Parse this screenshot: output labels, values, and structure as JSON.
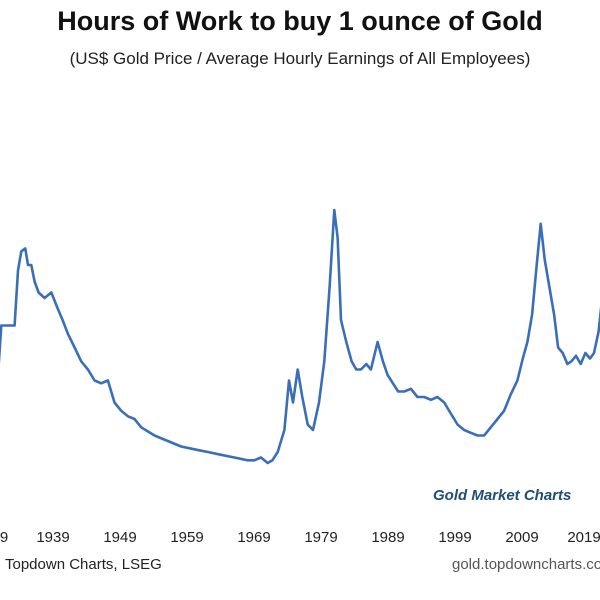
{
  "chart_data": {
    "type": "line",
    "title": "Hours of Work to buy 1 ounce of Gold",
    "subtitle": "(US$ Gold Price / Average Hourly Earnings of All Employees)",
    "xlabel": "",
    "ylabel": "",
    "x_ticks": [
      "9",
      "1939",
      "1949",
      "1959",
      "1969",
      "1979",
      "1989",
      "1999",
      "2009",
      "2019"
    ],
    "xlim": [
      1928,
      2022
    ],
    "ylim": [
      0,
      100
    ],
    "grid": false,
    "legend": "none",
    "line_color": "#3a6fb8",
    "series": [
      {
        "x": [
          1928,
          1929.5,
          1930,
          1932,
          1932.5,
          1933,
          1933.6,
          1934,
          1934.5,
          1935,
          1935.6,
          1936.5,
          1937.5,
          1938.5,
          1939.2,
          1940,
          1941,
          1942,
          1943,
          1944,
          1945,
          1946,
          1947,
          1948,
          1949,
          1950,
          1951,
          1953,
          1955,
          1957,
          1959,
          1961,
          1963,
          1965,
          1967,
          1968,
          1969,
          1970,
          1970.7,
          1971.5,
          1972.5,
          1973.2,
          1973.8,
          1974.5,
          1975.2,
          1976,
          1976.8,
          1977.7,
          1978.5,
          1979.3,
          1980,
          1980.5,
          1981,
          1981.8,
          1982.6,
          1983.3,
          1984,
          1984.8,
          1985.5,
          1986.5,
          1987.3,
          1988,
          1988.8,
          1989.6,
          1990.5,
          1991.5,
          1992.5,
          1993.5,
          1994.5,
          1995.5,
          1996.5,
          1997.5,
          1998.5,
          1999.5,
          2000.5,
          2001.5,
          2002.5,
          2003.5,
          2004.5,
          2005.5,
          2006.5,
          2007.5,
          2008.3,
          2009,
          2009.7,
          2010.4,
          2011,
          2011.6,
          2012.3,
          2013,
          2013.6,
          2014.3,
          2015,
          2015.6,
          2016.3,
          2017,
          2017.7,
          2018.4,
          2019,
          2019.7,
          2020.3,
          2021,
          2022
        ],
        "y": [
          40,
          40,
          58,
          58,
          78,
          85,
          86,
          80,
          80,
          74,
          70,
          68,
          70,
          64,
          60,
          55,
          50,
          45,
          42,
          38,
          37,
          38,
          30,
          27,
          25,
          24,
          21,
          18,
          16,
          14,
          13,
          12,
          11,
          10,
          9,
          9,
          10,
          8,
          9,
          12,
          20,
          38,
          30,
          42,
          32,
          22,
          20,
          30,
          45,
          72,
          100,
          90,
          60,
          52,
          45,
          42,
          42,
          44,
          42,
          52,
          45,
          40,
          37,
          34,
          34,
          35,
          32,
          32,
          31,
          32,
          30,
          26,
          22,
          20,
          19,
          18,
          18,
          21,
          24,
          27,
          33,
          38,
          46,
          52,
          62,
          80,
          95,
          82,
          72,
          62,
          50,
          48,
          44,
          45,
          47,
          44,
          48,
          46,
          48,
          56,
          70,
          64,
          60
        ]
      }
    ],
    "annotation": "Gold Market Charts",
    "source": "Topdown Charts, LSEG",
    "website": "gold.topdowncharts.com"
  }
}
